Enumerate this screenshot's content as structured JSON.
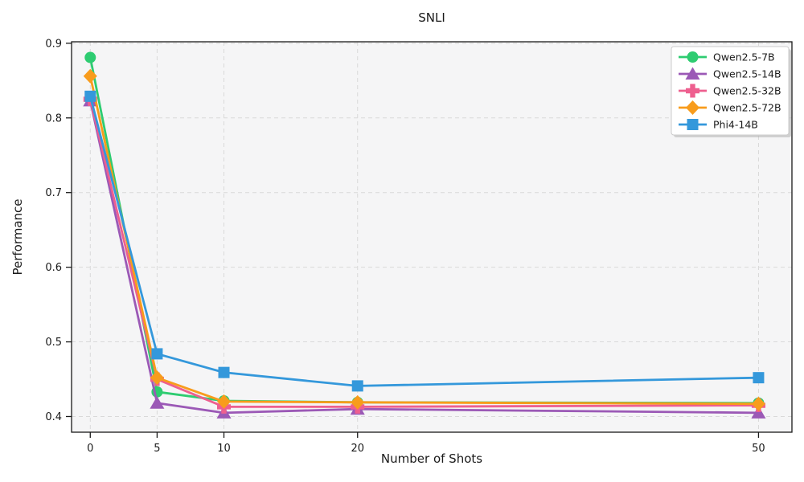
{
  "chart_data": {
    "type": "line",
    "title": "SNLI",
    "xlabel": "Number of Shots",
    "ylabel": "Performance",
    "x": [
      0,
      5,
      10,
      20,
      50
    ],
    "x_ticks": [
      0,
      5,
      10,
      20,
      50
    ],
    "y_ticks": [
      0.4,
      0.5,
      0.6,
      0.7,
      0.8,
      0.9
    ],
    "xlim": [
      -1.4,
      52.5
    ],
    "ylim": [
      0.379,
      0.902
    ],
    "grid": true,
    "grid_style": "dashed",
    "legend_position": "upper right",
    "series": [
      {
        "name": "Qwen2.5-7B",
        "color": "#2ecc71",
        "marker": "circle",
        "values": [
          0.881,
          0.433,
          0.421,
          0.419,
          0.418
        ]
      },
      {
        "name": "Qwen2.5-14B",
        "color": "#9b59b6",
        "marker": "triangle",
        "values": [
          0.823,
          0.418,
          0.405,
          0.41,
          0.405
        ]
      },
      {
        "name": "Qwen2.5-32B",
        "color": "#ee5f8f",
        "marker": "plus",
        "values": [
          0.825,
          0.45,
          0.413,
          0.413,
          0.415
        ]
      },
      {
        "name": "Qwen2.5-72B",
        "color": "#f89c1c",
        "marker": "diamond",
        "values": [
          0.856,
          0.452,
          0.42,
          0.419,
          0.417
        ]
      },
      {
        "name": "Phi4-14B",
        "color": "#3498db",
        "marker": "square",
        "values": [
          0.829,
          0.484,
          0.459,
          0.441,
          0.452
        ]
      }
    ],
    "colors": {
      "plot_background": "#f5f5f6",
      "grid": "#d9d9d9",
      "spine": "#1a1a1a",
      "tick_label": "#1a1a1a",
      "legend_border": "#cccccc",
      "legend_background": "#ffffff",
      "legend_shadow": "#b0b0b0"
    }
  }
}
